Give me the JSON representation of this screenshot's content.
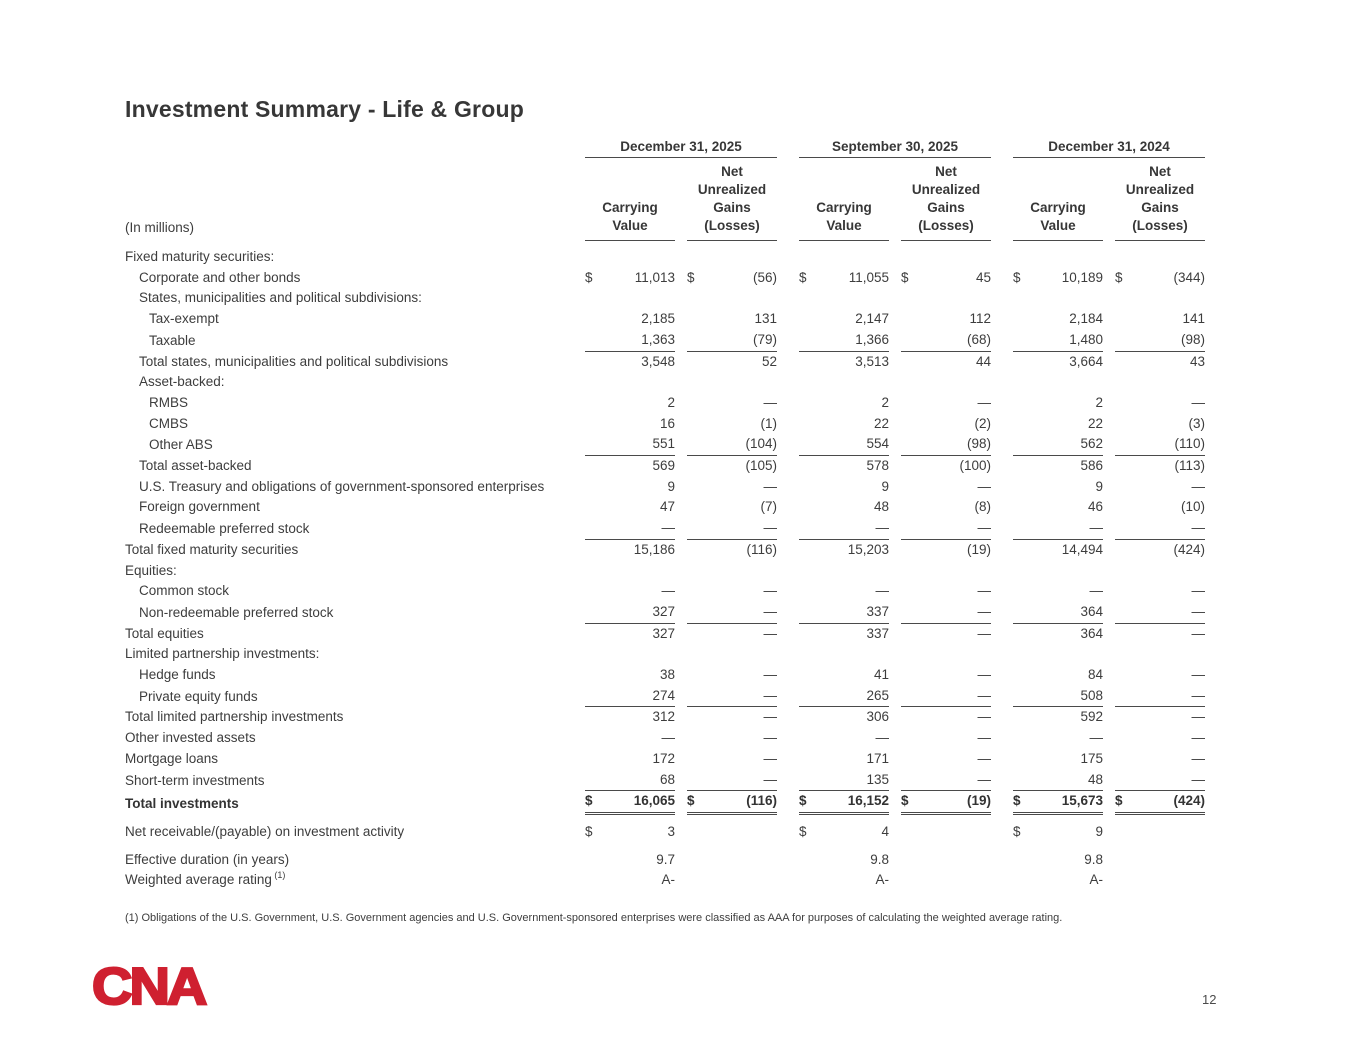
{
  "title": "Investment Summary - Life & Group",
  "page_number": "12",
  "footnote": "(1) Obligations of the U.S. Government, U.S. Government agencies and U.S. Government-sponsored enterprises were classified as AAA for purposes of calculating the weighted average rating.",
  "logo": {
    "text": "CNA",
    "color": "#cf2030"
  },
  "table": {
    "in_millions_label": "(In millions)",
    "group_headers": [
      "December 31, 2025",
      "September 30, 2025",
      "December 31, 2024"
    ],
    "carrying_header": "Carrying\nValue",
    "gains_header": "Net\nUnrealized\nGains\n(Losses)",
    "rows": [
      {
        "label": "Fixed maturity securities:",
        "indent": 0
      },
      {
        "label": "Corporate and other bonds",
        "indent": 1,
        "dollars": [
          1,
          1,
          1,
          1,
          1,
          1
        ],
        "values": [
          "11,013",
          "(56)",
          "11,055",
          "45",
          "10,189",
          "(344)"
        ]
      },
      {
        "label": "States, municipalities and political subdivisions:",
        "indent": 1
      },
      {
        "label": "Tax-exempt",
        "indent": 2,
        "values": [
          "2,185",
          "131",
          "2,147",
          "112",
          "2,184",
          "141"
        ]
      },
      {
        "label": "Taxable",
        "indent": 2,
        "values": [
          "1,363",
          "(79)",
          "1,366",
          "(68)",
          "1,480",
          "(98)"
        ],
        "rule": "bottom"
      },
      {
        "label": "Total states, municipalities and political subdivisions",
        "indent": 1,
        "values": [
          "3,548",
          "52",
          "3,513",
          "44",
          "3,664",
          "43"
        ]
      },
      {
        "label": "Asset-backed:",
        "indent": 1
      },
      {
        "label": "RMBS",
        "indent": 2,
        "values": [
          "2",
          "—",
          "2",
          "—",
          "2",
          "—"
        ]
      },
      {
        "label": "CMBS",
        "indent": 2,
        "values": [
          "16",
          "(1)",
          "22",
          "(2)",
          "22",
          "(3)"
        ]
      },
      {
        "label": "Other ABS",
        "indent": 2,
        "values": [
          "551",
          "(104)",
          "554",
          "(98)",
          "562",
          "(110)"
        ],
        "rule": "bottom"
      },
      {
        "label": "Total asset-backed",
        "indent": 1,
        "values": [
          "569",
          "(105)",
          "578",
          "(100)",
          "586",
          "(113)"
        ]
      },
      {
        "label": "U.S. Treasury and obligations of government-sponsored enterprises",
        "indent": 1,
        "values": [
          "9",
          "—",
          "9",
          "—",
          "9",
          "—"
        ]
      },
      {
        "label": "Foreign government",
        "indent": 1,
        "values": [
          "47",
          "(7)",
          "48",
          "(8)",
          "46",
          "(10)"
        ]
      },
      {
        "label": "Redeemable preferred stock",
        "indent": 1,
        "values": [
          "—",
          "—",
          "—",
          "—",
          "—",
          "—"
        ],
        "rule": "bottom"
      },
      {
        "label": "Total fixed maturity securities",
        "indent": 0,
        "values": [
          "15,186",
          "(116)",
          "15,203",
          "(19)",
          "14,494",
          "(424)"
        ]
      },
      {
        "label": "Equities:",
        "indent": 0
      },
      {
        "label": "Common stock",
        "indent": 1,
        "values": [
          "—",
          "—",
          "—",
          "—",
          "—",
          "—"
        ]
      },
      {
        "label": "Non-redeemable preferred stock",
        "indent": 1,
        "values": [
          "327",
          "—",
          "337",
          "—",
          "364",
          "—"
        ],
        "rule": "bottom"
      },
      {
        "label": "Total equities",
        "indent": 0,
        "values": [
          "327",
          "—",
          "337",
          "—",
          "364",
          "—"
        ]
      },
      {
        "label": "Limited partnership investments:",
        "indent": 0
      },
      {
        "label": "Hedge funds",
        "indent": 1,
        "values": [
          "38",
          "—",
          "41",
          "—",
          "84",
          "—"
        ]
      },
      {
        "label": "Private equity funds",
        "indent": 1,
        "values": [
          "274",
          "—",
          "265",
          "—",
          "508",
          "—"
        ],
        "rule": "bottom"
      },
      {
        "label": "Total limited partnership investments",
        "indent": 0,
        "values": [
          "312",
          "—",
          "306",
          "—",
          "592",
          "—"
        ]
      },
      {
        "label": "Other invested assets",
        "indent": 0,
        "values": [
          "—",
          "—",
          "—",
          "—",
          "—",
          "—"
        ]
      },
      {
        "label": "Mortgage loans",
        "indent": 0,
        "values": [
          "172",
          "—",
          "171",
          "—",
          "175",
          "—"
        ]
      },
      {
        "label": "Short-term investments",
        "indent": 0,
        "values": [
          "68",
          "—",
          "135",
          "—",
          "48",
          "—"
        ],
        "rule": "bottom"
      },
      {
        "label": "Total investments",
        "indent": 0,
        "bold": true,
        "dollars": [
          1,
          1,
          1,
          1,
          1,
          1
        ],
        "values": [
          "16,065",
          "(116)",
          "16,152",
          "(19)",
          "15,673",
          "(424)"
        ],
        "rule": "double"
      },
      {
        "label": "Net receivable/(payable) on investment activity",
        "indent": 0,
        "gap": true,
        "dollars": [
          1,
          0,
          1,
          0,
          1,
          0
        ],
        "values": [
          "3",
          "",
          "4",
          "",
          "9",
          ""
        ]
      },
      {
        "label": "Effective duration (in years)",
        "indent": 0,
        "gap": true,
        "values": [
          "9.7",
          "",
          "9.8",
          "",
          "9.8",
          ""
        ]
      },
      {
        "label": "Weighted average rating",
        "sup": "(1)",
        "indent": 0,
        "values": [
          "A-",
          "",
          "A-",
          "",
          "A-",
          ""
        ]
      }
    ]
  }
}
